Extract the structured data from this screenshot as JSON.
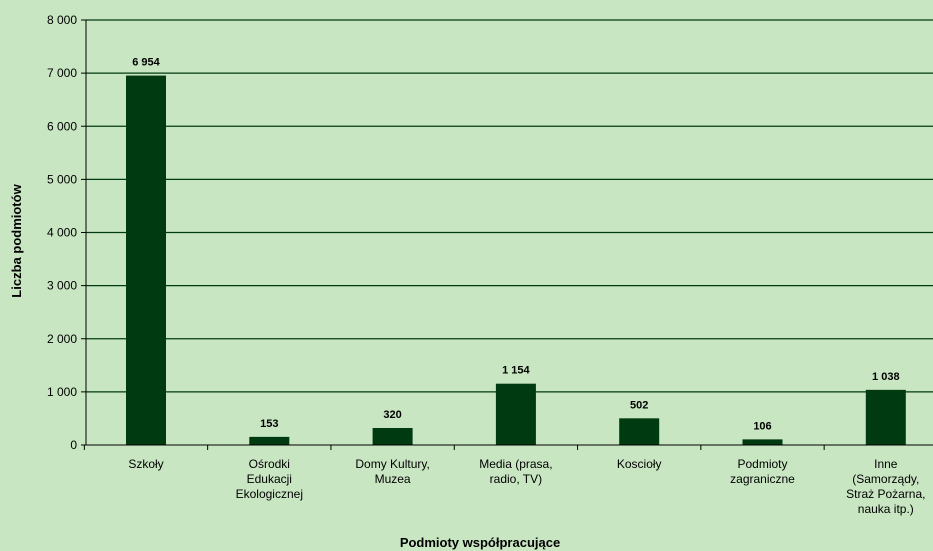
{
  "chart_data": {
    "type": "bar",
    "title": "",
    "xlabel": "Podmioty współpracujące",
    "ylabel": "Liczba podmiotów",
    "ylim": [
      0,
      8000
    ],
    "yticks": [
      0,
      1000,
      2000,
      3000,
      4000,
      5000,
      6000,
      7000,
      8000
    ],
    "ytick_labels": [
      "0",
      "1 000",
      "2 000",
      "3 000",
      "4 000",
      "5 000",
      "6 000",
      "7 000",
      "8 000"
    ],
    "grid": true,
    "categories": [
      [
        "Szkoły"
      ],
      [
        "Ośrodki",
        "Edukacji",
        "Ekologicznej"
      ],
      [
        "Domy Kultury,",
        "Muzea"
      ],
      [
        "Media (prasa,",
        "radio, TV)"
      ],
      [
        "Koscioły"
      ],
      [
        "Podmioty",
        "zagraniczne"
      ],
      [
        "Inne",
        "(Samorządy,",
        "Straż Pożarna,",
        "nauka itp.)"
      ]
    ],
    "values": [
      6954,
      153,
      320,
      1154,
      502,
      106,
      1038
    ],
    "value_labels": [
      "6 954",
      "153",
      "320",
      "1 154",
      "502",
      "106",
      "1 038"
    ],
    "colors": {
      "background": "#c9e6c3",
      "bar": "#003a10",
      "grid": "#003a10"
    }
  }
}
